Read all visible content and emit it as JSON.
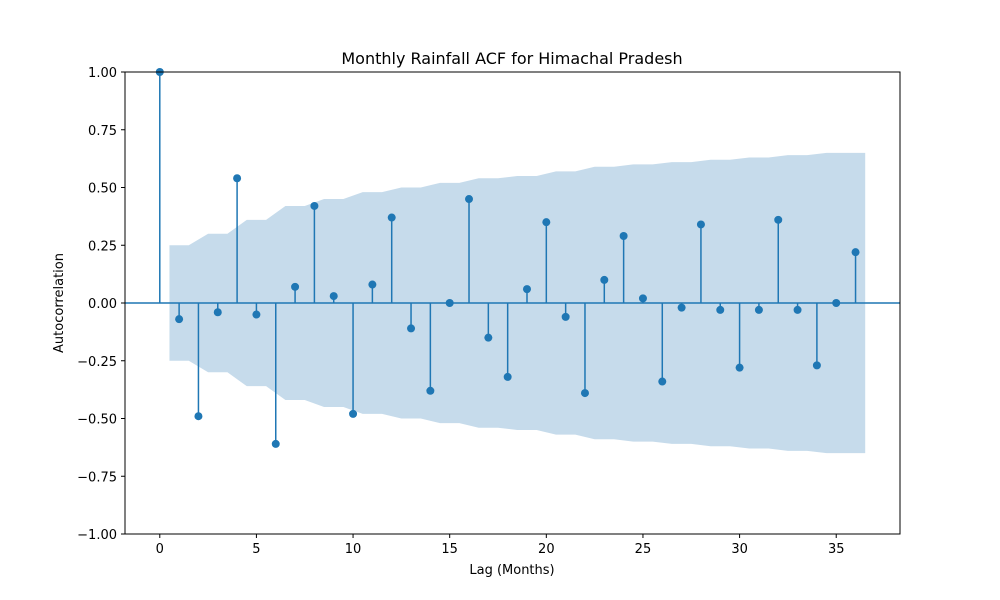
{
  "chart_data": {
    "type": "stem",
    "title": "Monthly Rainfall ACF for Himachal Pradesh",
    "xlabel": "Lag (Months)",
    "ylabel": "Autocorrelation",
    "xlim": [
      -1.8,
      38.3
    ],
    "ylim": [
      -1.0,
      1.0
    ],
    "xticks": [
      0,
      5,
      10,
      15,
      20,
      25,
      30,
      35
    ],
    "yticks": [
      -1.0,
      -0.75,
      -0.5,
      -0.25,
      0.0,
      0.25,
      0.5,
      0.75,
      1.0
    ],
    "ytick_labels": [
      "−1.00",
      "−0.75",
      "−0.50",
      "−0.25",
      "0.00",
      "0.25",
      "0.50",
      "0.75",
      "1.00"
    ],
    "grid": false,
    "colors": {
      "stem": "#1f77b4",
      "band": "#c6dbeb"
    },
    "lags": [
      0,
      1,
      2,
      3,
      4,
      5,
      6,
      7,
      8,
      9,
      10,
      11,
      12,
      13,
      14,
      15,
      16,
      17,
      18,
      19,
      20,
      21,
      22,
      23,
      24,
      25,
      26,
      27,
      28,
      29,
      30,
      31,
      32,
      33,
      34,
      35,
      36
    ],
    "acf": [
      1.0,
      -0.07,
      -0.49,
      -0.04,
      0.54,
      -0.05,
      -0.61,
      0.07,
      0.42,
      0.03,
      -0.48,
      0.08,
      0.37,
      -0.11,
      -0.38,
      0.0,
      0.45,
      -0.15,
      -0.32,
      0.06,
      0.35,
      -0.06,
      -0.39,
      0.1,
      0.29,
      0.02,
      -0.34,
      -0.02,
      0.34,
      -0.03,
      -0.28,
      -0.03,
      0.36,
      -0.03,
      -0.27,
      0.0,
      0.22
    ],
    "confidence_band": {
      "lags": [
        0.5,
        1.5,
        2.5,
        3.5,
        4.5,
        5.5,
        6.5,
        7.5,
        8.5,
        9.5,
        10.5,
        11.5,
        12.5,
        13.5,
        14.5,
        15.5,
        16.5,
        17.5,
        18.5,
        19.5,
        20.5,
        21.5,
        22.5,
        23.5,
        24.5,
        25.5,
        26.5,
        27.5,
        28.5,
        29.5,
        30.5,
        31.5,
        32.5,
        33.5,
        34.5,
        35.5,
        36.5
      ],
      "upper": [
        0.25,
        0.25,
        0.3,
        0.3,
        0.36,
        0.36,
        0.42,
        0.42,
        0.45,
        0.45,
        0.48,
        0.48,
        0.5,
        0.5,
        0.52,
        0.52,
        0.54,
        0.54,
        0.55,
        0.55,
        0.57,
        0.57,
        0.59,
        0.59,
        0.6,
        0.6,
        0.61,
        0.61,
        0.62,
        0.62,
        0.63,
        0.63,
        0.64,
        0.64,
        0.65,
        0.65,
        0.65
      ]
    }
  }
}
